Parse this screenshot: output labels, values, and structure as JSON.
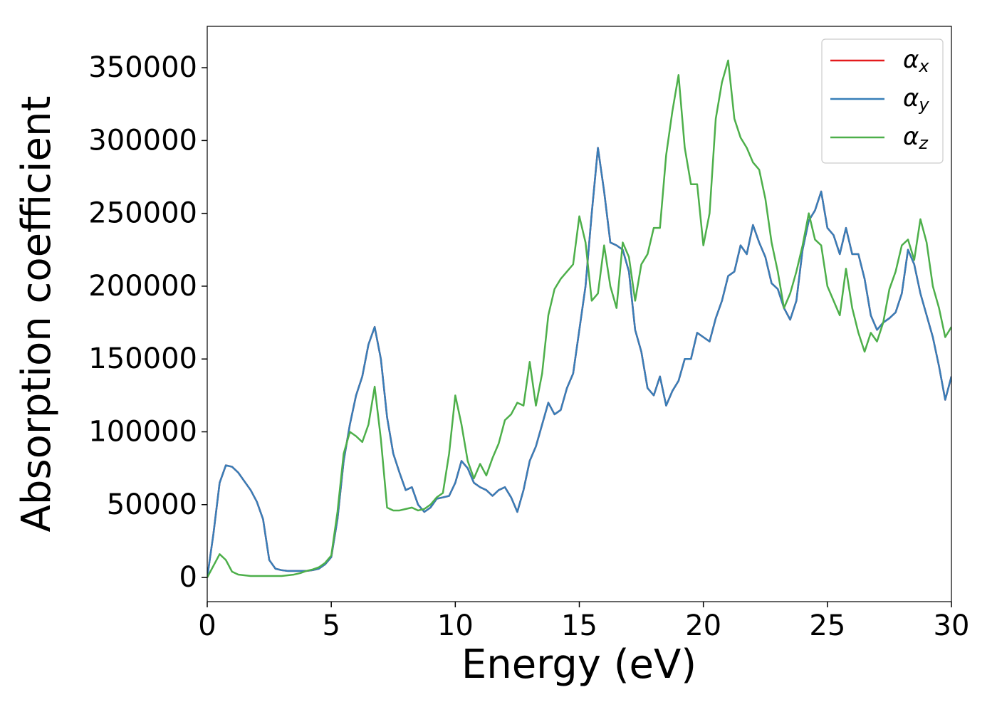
{
  "chart_data": {
    "type": "line",
    "x_label": "Energy (eV)",
    "y_label": "Absorption coefficient",
    "x": [
      0,
      0.25,
      0.5,
      0.75,
      1,
      1.25,
      1.5,
      1.75,
      2,
      2.25,
      2.5,
      2.75,
      3,
      3.25,
      3.5,
      3.75,
      4,
      4.25,
      4.5,
      4.75,
      5,
      5.25,
      5.5,
      5.75,
      6,
      6.25,
      6.5,
      6.75,
      7,
      7.25,
      7.5,
      7.75,
      8,
      8.25,
      8.5,
      8.75,
      9,
      9.25,
      9.5,
      9.75,
      10,
      10.25,
      10.5,
      10.75,
      11,
      11.25,
      11.5,
      11.75,
      12,
      12.25,
      12.5,
      12.75,
      13,
      13.25,
      13.5,
      13.75,
      14,
      14.25,
      14.5,
      14.75,
      15,
      15.25,
      15.5,
      15.75,
      16,
      16.25,
      16.5,
      16.75,
      17,
      17.25,
      17.5,
      17.75,
      18,
      18.25,
      18.5,
      18.75,
      19,
      19.25,
      19.5,
      19.75,
      20,
      20.25,
      20.5,
      20.75,
      21,
      21.25,
      21.5,
      21.75,
      22,
      22.25,
      22.5,
      22.75,
      23,
      23.25,
      23.5,
      23.75,
      24,
      24.25,
      24.5,
      24.75,
      25,
      25.25,
      25.5,
      25.75,
      26,
      26.25,
      26.5,
      26.75,
      27,
      27.25,
      27.5,
      27.75,
      28,
      28.25,
      28.5,
      28.75,
      29,
      29.25,
      29.5,
      29.75,
      30
    ],
    "series": [
      {
        "name": "αx",
        "color": "#e41a1c",
        "values": [
          0,
          30000,
          65000,
          77000,
          76000,
          72000,
          66000,
          60000,
          52000,
          40000,
          12000,
          6000,
          5000,
          4500,
          4500,
          4500,
          4500,
          5000,
          6000,
          9000,
          14000,
          40000,
          80000,
          105000,
          125000,
          138000,
          160000,
          172000,
          150000,
          110000,
          85000,
          72000,
          60000,
          62000,
          50000,
          45000,
          48000,
          54000,
          55000,
          56000,
          65000,
          80000,
          75000,
          65000,
          62000,
          60000,
          56000,
          60000,
          62000,
          55000,
          45000,
          60000,
          80000,
          90000,
          105000,
          120000,
          112000,
          115000,
          130000,
          140000,
          170000,
          200000,
          250000,
          295000,
          265000,
          230000,
          228000,
          225000,
          210000,
          170000,
          155000,
          130000,
          125000,
          138000,
          118000,
          128000,
          135000,
          150000,
          150000,
          168000,
          165000,
          162000,
          178000,
          190000,
          207000,
          210000,
          228000,
          222000,
          242000,
          230000,
          220000,
          202000,
          198000,
          185000,
          177000,
          190000,
          225000,
          245000,
          252000,
          265000,
          240000,
          235000,
          222000,
          240000,
          222000,
          222000,
          205000,
          180000,
          170000,
          175000,
          178000,
          182000,
          195000,
          225000,
          215000,
          195000,
          180000,
          165000,
          145000,
          122000,
          138000
        ]
      },
      {
        "name": "αy",
        "color": "#377eb8",
        "values": [
          0,
          30000,
          65000,
          77000,
          76000,
          72000,
          66000,
          60000,
          52000,
          40000,
          12000,
          6000,
          5000,
          4500,
          4500,
          4500,
          4500,
          5000,
          6000,
          9000,
          14000,
          40000,
          80000,
          105000,
          125000,
          138000,
          160000,
          172000,
          150000,
          110000,
          85000,
          72000,
          60000,
          62000,
          50000,
          45000,
          48000,
          54000,
          55000,
          56000,
          65000,
          80000,
          75000,
          65000,
          62000,
          60000,
          56000,
          60000,
          62000,
          55000,
          45000,
          60000,
          80000,
          90000,
          105000,
          120000,
          112000,
          115000,
          130000,
          140000,
          170000,
          200000,
          250000,
          295000,
          265000,
          230000,
          228000,
          225000,
          210000,
          170000,
          155000,
          130000,
          125000,
          138000,
          118000,
          128000,
          135000,
          150000,
          150000,
          168000,
          165000,
          162000,
          178000,
          190000,
          207000,
          210000,
          228000,
          222000,
          242000,
          230000,
          220000,
          202000,
          198000,
          185000,
          177000,
          190000,
          225000,
          245000,
          252000,
          265000,
          240000,
          235000,
          222000,
          240000,
          222000,
          222000,
          205000,
          180000,
          170000,
          175000,
          178000,
          182000,
          195000,
          225000,
          215000,
          195000,
          180000,
          165000,
          145000,
          122000,
          138000
        ]
      },
      {
        "name": "αz",
        "color": "#4daf4a",
        "values": [
          0,
          8000,
          16000,
          12000,
          4000,
          2000,
          1500,
          1000,
          1000,
          1000,
          1000,
          1000,
          1000,
          1500,
          2000,
          3000,
          4500,
          5500,
          7000,
          10000,
          15000,
          45000,
          85000,
          100000,
          97000,
          93000,
          105000,
          131000,
          95000,
          48000,
          46000,
          46000,
          47000,
          48000,
          46000,
          47000,
          50000,
          55000,
          58000,
          85000,
          125000,
          105000,
          80000,
          68000,
          78000,
          70000,
          82000,
          92000,
          108000,
          112000,
          120000,
          118000,
          148000,
          118000,
          140000,
          180000,
          198000,
          205000,
          210000,
          215000,
          248000,
          230000,
          190000,
          195000,
          228000,
          200000,
          185000,
          230000,
          220000,
          190000,
          215000,
          222000,
          240000,
          240000,
          290000,
          320000,
          345000,
          295000,
          270000,
          270000,
          228000,
          250000,
          315000,
          340000,
          355000,
          315000,
          302000,
          295000,
          285000,
          280000,
          260000,
          230000,
          210000,
          185000,
          195000,
          210000,
          228000,
          250000,
          232000,
          228000,
          200000,
          190000,
          180000,
          212000,
          185000,
          168000,
          155000,
          168000,
          162000,
          175000,
          198000,
          210000,
          228000,
          232000,
          218000,
          246000,
          230000,
          200000,
          185000,
          165000,
          172000
        ]
      }
    ],
    "xlim": [
      0,
      30
    ],
    "xticks": [
      0,
      5,
      10,
      15,
      20,
      25,
      30
    ],
    "ylim": [
      -16600,
      378400
    ],
    "yticks": [
      0,
      50000,
      100000,
      150000,
      200000,
      250000,
      300000,
      350000
    ],
    "legend": "upper right",
    "grid": false
  }
}
